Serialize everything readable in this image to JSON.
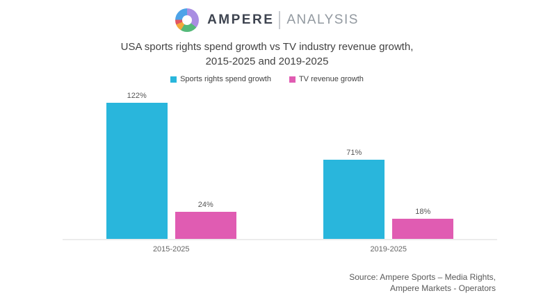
{
  "logo": {
    "ampere": "AMPERE",
    "analysis": "ANALYSIS",
    "icon": "donut-pie-icon",
    "icon_segments": {
      "purple": "#a98ee2",
      "green": "#55b97a",
      "orange": "#f2a93b",
      "red": "#e25560",
      "blue": "#4da3e8"
    }
  },
  "title": {
    "line1": "USA sports rights spend growth vs TV industry revenue growth,",
    "line2": "2015-2025 and 2019-2025"
  },
  "chart_data": {
    "type": "bar",
    "title": "USA sports rights spend growth vs TV industry revenue growth, 2015-2025 and 2019-2025",
    "categories": [
      "2015-2025",
      "2019-2025"
    ],
    "series": [
      {
        "name": "Sports rights spend growth",
        "color": "#29b6dc",
        "values": [
          122,
          71
        ]
      },
      {
        "name": "TV revenue growth",
        "color": "#e05cb2",
        "values": [
          24,
          18
        ]
      }
    ],
    "value_labels": [
      [
        "122%",
        "24%"
      ],
      [
        "71%",
        "18%"
      ]
    ],
    "unit": "%",
    "xlabel": "",
    "ylabel": "",
    "ylim": [
      0,
      134
    ],
    "grid": false,
    "y_axis_visible": false,
    "legend_position": "top"
  },
  "source": {
    "line1": "Source: Ampere Sports – Media Rights,",
    "line2": "Ampere Markets - Operators"
  },
  "colors": {
    "background": "#ffffff",
    "baseline": "#ececec",
    "title_text": "#414141",
    "label_text": "#595959"
  }
}
